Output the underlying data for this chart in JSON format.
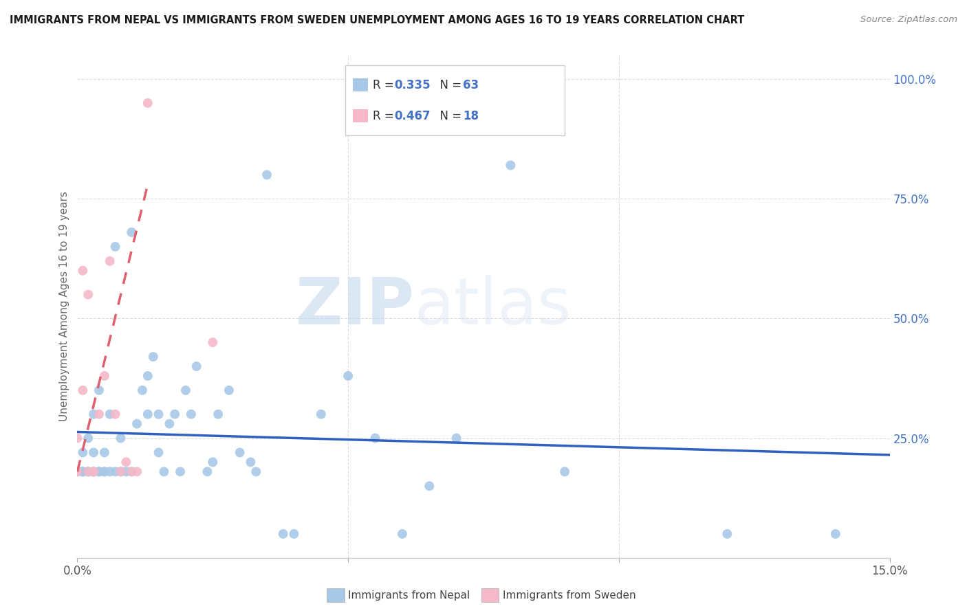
{
  "title": "IMMIGRANTS FROM NEPAL VS IMMIGRANTS FROM SWEDEN UNEMPLOYMENT AMONG AGES 16 TO 19 YEARS CORRELATION CHART",
  "source": "Source: ZipAtlas.com",
  "ylabel": "Unemployment Among Ages 16 to 19 years",
  "legend_nepal_r": "0.335",
  "legend_nepal_n": "63",
  "legend_sweden_r": "0.467",
  "legend_sweden_n": "18",
  "nepal_color": "#a8c8e8",
  "sweden_color": "#f4b8c8",
  "nepal_line_color": "#3060c0",
  "sweden_line_color": "#e06070",
  "watermark_zip": "ZIP",
  "watermark_atlas": "atlas",
  "background_color": "#ffffff",
  "grid_color": "#dddddd",
  "nepal_x": [
    0.0,
    0.0,
    0.001,
    0.001,
    0.001,
    0.001,
    0.002,
    0.002,
    0.002,
    0.002,
    0.003,
    0.003,
    0.003,
    0.003,
    0.004,
    0.004,
    0.004,
    0.005,
    0.005,
    0.005,
    0.006,
    0.006,
    0.007,
    0.007,
    0.008,
    0.008,
    0.009,
    0.01,
    0.01,
    0.011,
    0.012,
    0.013,
    0.013,
    0.014,
    0.015,
    0.015,
    0.016,
    0.017,
    0.018,
    0.019,
    0.02,
    0.021,
    0.022,
    0.024,
    0.025,
    0.026,
    0.028,
    0.03,
    0.032,
    0.033,
    0.035,
    0.038,
    0.04,
    0.045,
    0.05,
    0.055,
    0.06,
    0.065,
    0.07,
    0.08,
    0.09,
    0.12,
    0.14
  ],
  "nepal_y": [
    0.18,
    0.18,
    0.18,
    0.18,
    0.18,
    0.22,
    0.18,
    0.18,
    0.18,
    0.25,
    0.18,
    0.18,
    0.22,
    0.3,
    0.18,
    0.18,
    0.35,
    0.18,
    0.18,
    0.22,
    0.18,
    0.3,
    0.18,
    0.65,
    0.18,
    0.25,
    0.18,
    0.18,
    0.68,
    0.28,
    0.35,
    0.38,
    0.3,
    0.42,
    0.22,
    0.3,
    0.18,
    0.28,
    0.3,
    0.18,
    0.35,
    0.3,
    0.4,
    0.18,
    0.2,
    0.3,
    0.35,
    0.22,
    0.2,
    0.18,
    0.8,
    0.05,
    0.05,
    0.3,
    0.38,
    0.25,
    0.05,
    0.15,
    0.25,
    0.82,
    0.18,
    0.05,
    0.05
  ],
  "sweden_x": [
    0.0,
    0.0,
    0.001,
    0.001,
    0.002,
    0.002,
    0.003,
    0.003,
    0.004,
    0.005,
    0.006,
    0.007,
    0.008,
    0.009,
    0.01,
    0.011,
    0.013,
    0.025
  ],
  "sweden_y": [
    0.18,
    0.25,
    0.35,
    0.6,
    0.18,
    0.55,
    0.18,
    0.18,
    0.3,
    0.38,
    0.62,
    0.3,
    0.18,
    0.2,
    0.18,
    0.18,
    0.95,
    0.45
  ],
  "xlim": [
    0.0,
    0.15
  ],
  "ylim": [
    0.0,
    1.05
  ],
  "yticks": [
    0.0,
    0.25,
    0.5,
    0.75,
    1.0
  ],
  "ytick_labels": [
    "",
    "25.0%",
    "50.0%",
    "75.0%",
    "100.0%"
  ],
  "xtick_left_label": "0.0%",
  "xtick_right_label": "15.0%"
}
